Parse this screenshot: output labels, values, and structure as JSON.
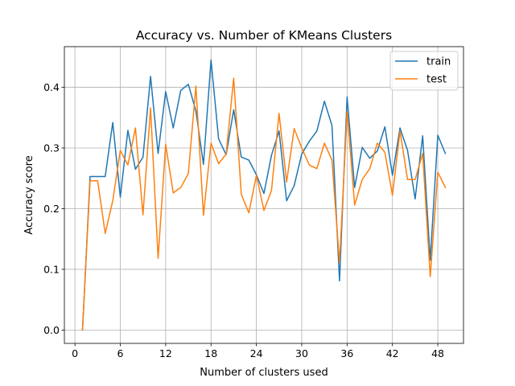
{
  "chart_data": {
    "type": "line",
    "title": "Accuracy vs. Number of KMeans Clusters",
    "xlabel": "Number of clusters used",
    "ylabel": "Accuracy score",
    "xlim": [
      -1.4,
      51.4
    ],
    "ylim": [
      -0.022,
      0.467
    ],
    "xticks": [
      0,
      6,
      12,
      18,
      24,
      30,
      36,
      42,
      48
    ],
    "yticks": [
      0.0,
      0.1,
      0.2,
      0.3,
      0.4
    ],
    "ytick_labels": [
      "0.0",
      "0.1",
      "0.2",
      "0.3",
      "0.4"
    ],
    "grid": true,
    "legend_position": "top-right",
    "x": [
      1,
      2,
      3,
      4,
      5,
      6,
      7,
      8,
      9,
      10,
      11,
      12,
      13,
      14,
      15,
      16,
      17,
      18,
      19,
      20,
      21,
      22,
      23,
      24,
      25,
      26,
      27,
      28,
      29,
      30,
      31,
      32,
      33,
      34,
      35,
      36,
      37,
      38,
      39,
      40,
      41,
      42,
      43,
      44,
      45,
      46,
      47,
      48,
      49
    ],
    "series": [
      {
        "name": "train",
        "color": "#1f77b4",
        "values": [
          0.0,
          0.253,
          0.253,
          0.253,
          0.342,
          0.219,
          0.329,
          0.265,
          0.285,
          0.418,
          0.291,
          0.393,
          0.333,
          0.395,
          0.405,
          0.361,
          0.273,
          0.445,
          0.315,
          0.289,
          0.363,
          0.285,
          0.28,
          0.256,
          0.225,
          0.288,
          0.328,
          0.213,
          0.238,
          0.29,
          0.311,
          0.328,
          0.377,
          0.337,
          0.081,
          0.384,
          0.235,
          0.301,
          0.283,
          0.295,
          0.335,
          0.255,
          0.333,
          0.296,
          0.216,
          0.32,
          0.115,
          0.321,
          0.291
        ]
      },
      {
        "name": "test",
        "color": "#ff7f0e",
        "values": [
          0.0,
          0.246,
          0.246,
          0.159,
          0.213,
          0.296,
          0.272,
          0.333,
          0.19,
          0.366,
          0.118,
          0.306,
          0.226,
          0.235,
          0.258,
          0.402,
          0.189,
          0.308,
          0.274,
          0.29,
          0.415,
          0.224,
          0.193,
          0.255,
          0.197,
          0.23,
          0.357,
          0.244,
          0.332,
          0.3,
          0.272,
          0.266,
          0.308,
          0.28,
          0.111,
          0.36,
          0.206,
          0.248,
          0.266,
          0.308,
          0.293,
          0.222,
          0.328,
          0.248,
          0.248,
          0.291,
          0.088,
          0.26,
          0.235
        ]
      }
    ]
  }
}
